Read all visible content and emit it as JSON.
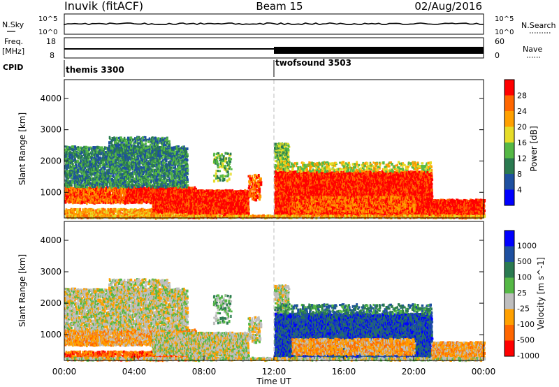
{
  "header": {
    "title": "Inuvik (fitACF)",
    "beam": "Beam 15",
    "date": "02/Aug/2016"
  },
  "noise_panel": {
    "left_label": "N.Sky",
    "left_ticks": [
      "10^5",
      "10^0"
    ],
    "right_label": "N.Search",
    "right_ticks": [
      "10^5",
      "10^0"
    ]
  },
  "freq_panel": {
    "left_label": "Freq.",
    "left_unit": "[MHz]",
    "left_ticks": [
      "18",
      "8"
    ],
    "right_label": "Nave",
    "right_ticks": [
      "60",
      "0"
    ]
  },
  "cpid": {
    "label": "CPID",
    "segments": [
      {
        "name": "themis 3300",
        "start_hour": 0
      },
      {
        "name": "twofsound 3503",
        "start_hour": 12
      }
    ]
  },
  "colors": {
    "power": [
      "#0000ff",
      "#1e50a0",
      "#2a7a50",
      "#55b845",
      "#e6dc28",
      "#ffa000",
      "#ff6600",
      "#ff0000"
    ],
    "velocity": [
      "#0000ff",
      "#1e50a0",
      "#2a7a50",
      "#55b845",
      "#bebebe",
      "#ffa000",
      "#ff6600",
      "#ff0000"
    ]
  },
  "chart_data": [
    {
      "type": "heatmap",
      "ylabel": "Slant Range [km]",
      "ylim": [
        180,
        4600
      ],
      "yticks": [
        "1000",
        "2000",
        "3000",
        "4000"
      ],
      "xlim": [
        0,
        24
      ],
      "colorbar": {
        "label": "Power [dB]",
        "ticks": [
          "4",
          "8",
          "12",
          "16",
          "20",
          "24",
          "28"
        ],
        "range": [
          0,
          30
        ]
      }
    },
    {
      "type": "heatmap",
      "xlabel": "Time UT",
      "ylabel": "Slant Range [km]",
      "ylim": [
        180,
        4600
      ],
      "yticks": [
        "1000",
        "2000",
        "3000",
        "4000"
      ],
      "xlim": [
        0,
        24
      ],
      "xticks": [
        "00:00",
        "04:00",
        "08:00",
        "12:00",
        "16:00",
        "20:00",
        "00:00"
      ],
      "colorbar": {
        "label": "Velocity [m s^-1]",
        "ticks": [
          "1000",
          "500",
          "100",
          "25",
          "-25",
          "-100",
          "-500",
          "-1000"
        ]
      }
    }
  ]
}
